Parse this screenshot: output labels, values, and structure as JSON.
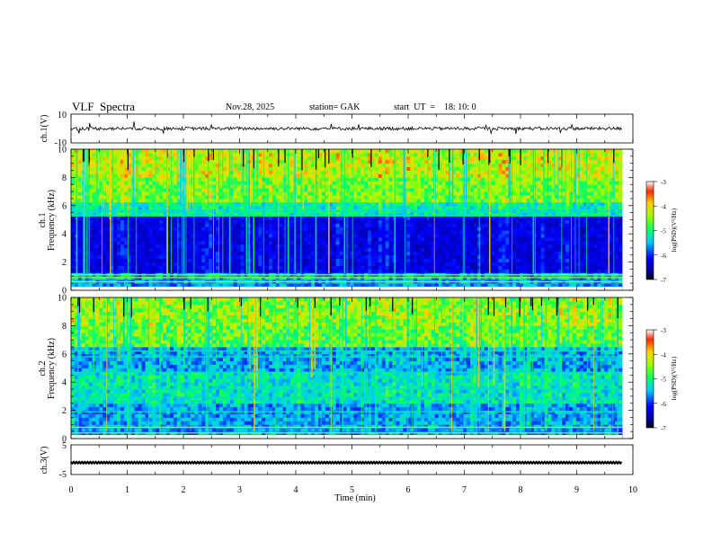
{
  "header": {
    "title": "VLF  Spectra",
    "date": "Nov.28, 2025",
    "station": "station= GAK",
    "start": "start  UT  =    18: 10: 0"
  },
  "chart_data": [
    {
      "type": "line",
      "name": "ch1-waveform",
      "ylabel": "ch.1(V)",
      "ylim": [
        -10,
        10
      ],
      "yticks": [
        "10",
        "-10"
      ]
    },
    {
      "type": "heatmap",
      "name": "ch1-spectrogram",
      "ylabel": "ch.1\nFrequency  (kHz)",
      "ylim": [
        0,
        10
      ],
      "yticks": [
        "0",
        "2",
        "4",
        "6",
        "8",
        "10"
      ],
      "colorbar": {
        "label": "log(PSD) (V²/Hz)",
        "range": [
          -7,
          -3
        ],
        "ticks": [
          "-3",
          "-4",
          "-5",
          "-6",
          "-7"
        ]
      },
      "strong_bands_khz": [
        0.6,
        0.9,
        1.1,
        5.3,
        5.6
      ]
    },
    {
      "type": "heatmap",
      "name": "ch2-spectrogram",
      "ylabel": "ch.2\nFrequency  (kHz)",
      "ylim": [
        0,
        10
      ],
      "yticks": [
        "0",
        "2",
        "4",
        "6",
        "8",
        "10"
      ],
      "colorbar": {
        "label": "log(PSD) (V²/Hz)",
        "range": [
          -7,
          -3
        ],
        "ticks": [
          "-3",
          "-4",
          "-5",
          "-6",
          "-7"
        ]
      },
      "strong_bands_khz": [
        0.4,
        0.8,
        1.9,
        2.9,
        3.5,
        4.7,
        5.8,
        6.2
      ]
    },
    {
      "type": "line",
      "name": "ch3-waveform",
      "ylabel": "ch.3(V)",
      "ylim": [
        -5,
        5
      ],
      "yticks": [
        "5",
        "-5"
      ],
      "level": -1
    }
  ],
  "xaxis": {
    "label": "Time  (min)",
    "range": [
      0,
      10
    ],
    "ticks": [
      "0",
      "1",
      "2",
      "3",
      "4",
      "5",
      "6",
      "7",
      "8",
      "9",
      "10"
    ],
    "data_end": 9.8
  }
}
